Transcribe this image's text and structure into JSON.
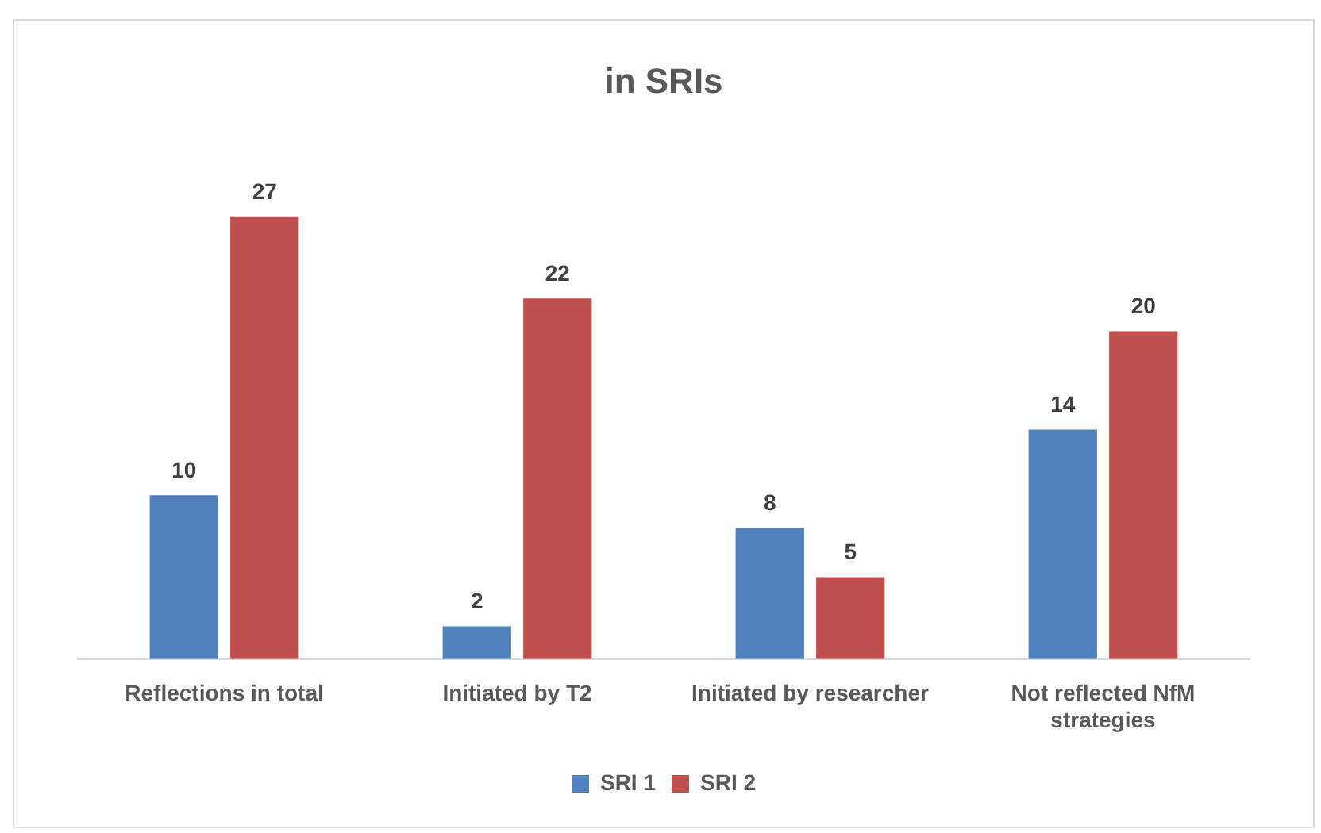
{
  "chart_data": {
    "type": "bar",
    "title": "in SRIs",
    "categories": [
      "Reflections in total",
      "Initiated by T2",
      "Initiated by researcher",
      "Not reflected NfM strategies"
    ],
    "series": [
      {
        "name": "SRI 1",
        "color": "#4f81bd",
        "values": [
          10,
          2,
          8,
          14
        ]
      },
      {
        "name": "SRI 2",
        "color": "#c0504d",
        "values": [
          27,
          22,
          5,
          20
        ]
      }
    ],
    "data_labels": true,
    "legend": "bottom",
    "grid": false
  }
}
